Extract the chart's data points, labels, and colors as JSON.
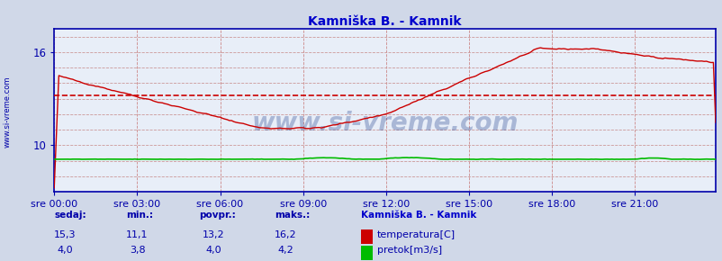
{
  "title": "Kamniška B. - Kamnik",
  "title_color": "#0000cc",
  "bg_color": "#d0d8e8",
  "plot_bg_color": "#e8eef8",
  "fig_size": [
    8.03,
    2.9
  ],
  "dpi": 100,
  "xlim": [
    0,
    287
  ],
  "ylim_temp": [
    7.0,
    17.5
  ],
  "yticks_temp": [
    10,
    16
  ],
  "avg_temp": 13.2,
  "xlabel_ticks": [
    0,
    36,
    72,
    108,
    144,
    180,
    216,
    252
  ],
  "xlabel_labels": [
    "sre 00:00",
    "sre 03:00",
    "sre 06:00",
    "sre 09:00",
    "sre 12:00",
    "sre 15:00",
    "sre 18:00",
    "sre 21:00"
  ],
  "grid_color_v": "#cc8888",
  "grid_color_h": "#cc9999",
  "axis_color": "#0000aa",
  "temp_color": "#cc0000",
  "flow_color": "#00bb00",
  "avg_line_color": "#cc0000",
  "watermark": "www.si-vreme.com",
  "watermark_color": "#1a3a8a",
  "watermark_alpha": 0.3,
  "legend_title": "Kamniška B. - Kamnik",
  "legend_title_color": "#0000cc",
  "label_color": "#0000aa",
  "sedaj_label": "sedaj:",
  "min_label": "min.:",
  "povpr_label": "povpr.:",
  "maks_label": "maks.:",
  "sedaj_temp": "15,3",
  "min_temp": "11,1",
  "povpr_temp": "13,2",
  "maks_temp": "16,2",
  "sedaj_flow": "4,0",
  "min_flow": "3,8",
  "povpr_flow": "4,0",
  "maks_flow": "4,2",
  "temp_label": "temperatura[C]",
  "flow_label": "pretok[m3/s]",
  "sidebar_text": "www.si-vreme.com"
}
